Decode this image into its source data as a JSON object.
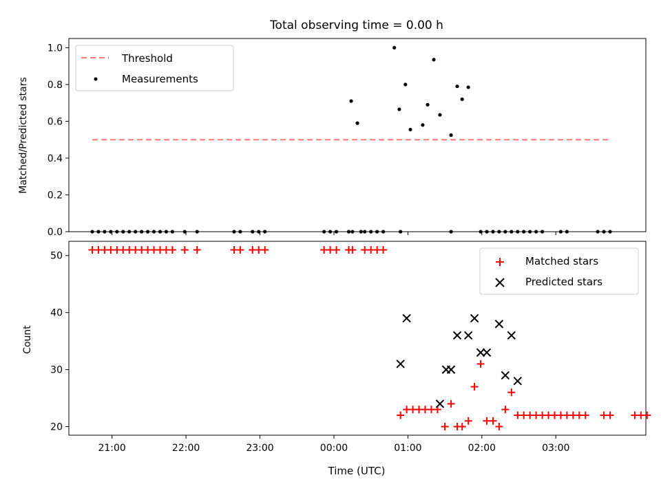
{
  "figure_title": "Total observing time = 0.00 h",
  "colors": {
    "threshold": "#ff7777",
    "measurements": "#000000",
    "matched": "#ff0000",
    "predicted": "#000000"
  },
  "chart_data": [
    {
      "type": "scatter",
      "ylabel": "Matched/Predicted stars",
      "xlim": [
        "20:25",
        "04:13"
      ],
      "ylim": [
        0,
        1.05
      ],
      "yticks": [
        "0.0",
        "0.2",
        "0.4",
        "0.6",
        "0.8",
        "1.0"
      ],
      "grid": false,
      "legend_position": "upper-left",
      "threshold": {
        "name": "Threshold",
        "y": 0.5,
        "x_range": [
          "20:44",
          "03:45"
        ]
      },
      "measurements": {
        "name": "Measurements",
        "points": [
          [
            "20:44",
            0
          ],
          [
            "20:49",
            0
          ],
          [
            "20:54",
            0
          ],
          [
            "20:59",
            0
          ],
          [
            "21:04",
            0
          ],
          [
            "21:09",
            0
          ],
          [
            "21:14",
            0
          ],
          [
            "21:19",
            0
          ],
          [
            "21:24",
            0
          ],
          [
            "21:29",
            0
          ],
          [
            "21:34",
            0
          ],
          [
            "21:39",
            0
          ],
          [
            "21:44",
            0
          ],
          [
            "21:49",
            0
          ],
          [
            "21:59",
            0
          ],
          [
            "22:09",
            0
          ],
          [
            "22:39",
            0
          ],
          [
            "22:44",
            0
          ],
          [
            "22:54",
            0
          ],
          [
            "22:59",
            0
          ],
          [
            "23:04",
            0
          ],
          [
            "23:52",
            0
          ],
          [
            "23:57",
            0
          ],
          [
            "00:02",
            0
          ],
          [
            "00:12",
            0
          ],
          [
            "00:15",
            0
          ],
          [
            "00:25",
            0
          ],
          [
            "00:30",
            0
          ],
          [
            "00:35",
            0
          ],
          [
            "00:40",
            0
          ],
          [
            "00:22",
            0
          ],
          [
            "00:54",
            0
          ],
          [
            "01:35",
            0
          ],
          [
            "01:59",
            0
          ],
          [
            "02:04",
            0
          ],
          [
            "02:09",
            0
          ],
          [
            "02:14",
            0
          ],
          [
            "02:19",
            0
          ],
          [
            "02:24",
            0
          ],
          [
            "02:29",
            0
          ],
          [
            "02:34",
            0
          ],
          [
            "02:39",
            0
          ],
          [
            "02:44",
            0
          ],
          [
            "02:49",
            0
          ],
          [
            "03:04",
            0
          ],
          [
            "03:09",
            0
          ],
          [
            "03:34",
            0
          ],
          [
            "03:39",
            0
          ],
          [
            "03:44",
            0
          ],
          [
            "00:14",
            0.71
          ],
          [
            "00:19",
            0.59
          ],
          [
            "00:49",
            1.0
          ],
          [
            "00:53",
            0.665
          ],
          [
            "00:58",
            0.8
          ],
          [
            "01:02",
            0.555
          ],
          [
            "01:12",
            0.58
          ],
          [
            "01:16",
            0.69
          ],
          [
            "01:21",
            0.935
          ],
          [
            "01:26",
            0.635
          ],
          [
            "01:35",
            0.525
          ],
          [
            "01:40",
            0.79
          ],
          [
            "01:44",
            0.72
          ],
          [
            "01:49",
            0.785
          ]
        ]
      }
    },
    {
      "type": "scatter",
      "xlabel": "Time (UTC)",
      "ylabel": "Count",
      "xlim": [
        "20:25",
        "04:13"
      ],
      "ylim": [
        18.5,
        52.5
      ],
      "yticks": [
        "20",
        "30",
        "40",
        "50"
      ],
      "xticks": [
        "21:00",
        "22:00",
        "23:00",
        "00:00",
        "01:00",
        "02:00",
        "03:00"
      ],
      "grid": false,
      "legend_position": "upper-right",
      "series": [
        {
          "name": "Matched stars",
          "marker": "plus",
          "points": [
            [
              "20:44",
              51
            ],
            [
              "20:49",
              51
            ],
            [
              "20:54",
              51
            ],
            [
              "20:59",
              51
            ],
            [
              "21:04",
              51
            ],
            [
              "21:09",
              51
            ],
            [
              "21:14",
              51
            ],
            [
              "21:19",
              51
            ],
            [
              "21:24",
              51
            ],
            [
              "21:29",
              51
            ],
            [
              "21:34",
              51
            ],
            [
              "21:39",
              51
            ],
            [
              "21:44",
              51
            ],
            [
              "21:49",
              51
            ],
            [
              "21:59",
              51
            ],
            [
              "22:09",
              51
            ],
            [
              "22:39",
              51
            ],
            [
              "22:44",
              51
            ],
            [
              "22:54",
              51
            ],
            [
              "22:59",
              51
            ],
            [
              "23:04",
              51
            ],
            [
              "23:52",
              51
            ],
            [
              "23:57",
              51
            ],
            [
              "00:02",
              51
            ],
            [
              "00:12",
              51
            ],
            [
              "00:15",
              51
            ],
            [
              "00:25",
              51
            ],
            [
              "00:30",
              51
            ],
            [
              "00:35",
              51
            ],
            [
              "00:40",
              51
            ],
            [
              "00:54",
              22
            ],
            [
              "00:59",
              23
            ],
            [
              "01:04",
              23
            ],
            [
              "01:09",
              23
            ],
            [
              "01:14",
              23
            ],
            [
              "01:19",
              23
            ],
            [
              "01:24",
              23
            ],
            [
              "01:30",
              20
            ],
            [
              "01:35",
              24
            ],
            [
              "01:40",
              20
            ],
            [
              "01:44",
              20
            ],
            [
              "01:49",
              21
            ],
            [
              "01:54",
              27
            ],
            [
              "01:59",
              31
            ],
            [
              "02:04",
              21
            ],
            [
              "02:09",
              21
            ],
            [
              "02:14",
              20
            ],
            [
              "02:19",
              23
            ],
            [
              "02:24",
              26
            ],
            [
              "02:29",
              22
            ],
            [
              "02:34",
              22
            ],
            [
              "02:39",
              22
            ],
            [
              "02:44",
              22
            ],
            [
              "02:49",
              22
            ],
            [
              "02:54",
              22
            ],
            [
              "02:59",
              22
            ],
            [
              "03:04",
              22
            ],
            [
              "03:09",
              22
            ],
            [
              "03:14",
              22
            ],
            [
              "03:19",
              22
            ],
            [
              "03:24",
              22
            ],
            [
              "03:39",
              22
            ],
            [
              "03:44",
              22
            ],
            [
              "04:04",
              22
            ],
            [
              "04:09",
              22
            ],
            [
              "04:14",
              22
            ]
          ]
        },
        {
          "name": "Predicted stars",
          "marker": "x",
          "points": [
            [
              "00:54",
              31
            ],
            [
              "00:59",
              39
            ],
            [
              "01:26",
              24
            ],
            [
              "01:31",
              30
            ],
            [
              "01:35",
              30
            ],
            [
              "01:40",
              36
            ],
            [
              "01:49",
              36
            ],
            [
              "01:54",
              39
            ],
            [
              "01:59",
              33
            ],
            [
              "02:04",
              33
            ],
            [
              "02:14",
              38
            ],
            [
              "02:19",
              29
            ],
            [
              "02:24",
              36
            ],
            [
              "02:29",
              28
            ]
          ]
        }
      ]
    }
  ]
}
